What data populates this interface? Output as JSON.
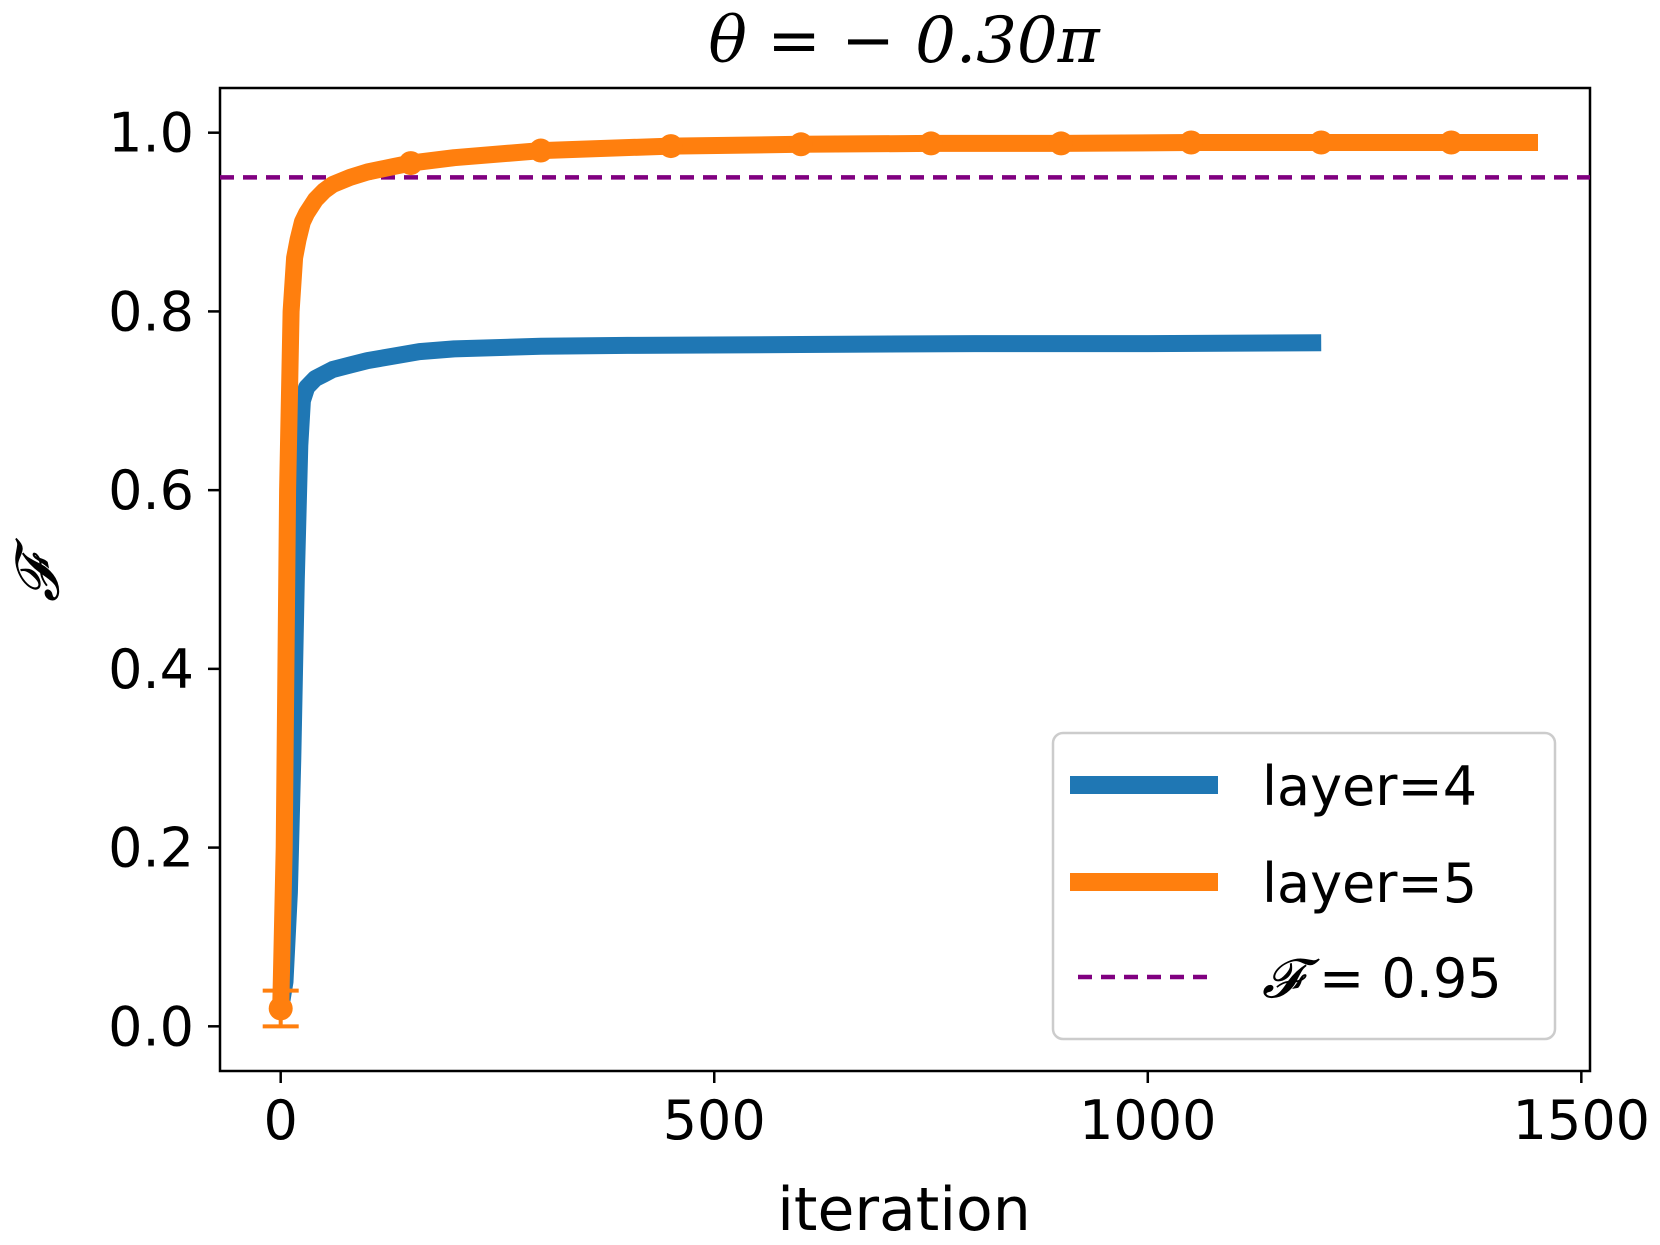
{
  "chart_data": {
    "type": "line",
    "title": "θ = − 0.30π",
    "xlabel": "iteration",
    "ylabel": "𝓕",
    "xlim": [
      -70,
      1510
    ],
    "ylim": [
      -0.05,
      1.05
    ],
    "xticks": [
      0,
      500,
      1000,
      1500
    ],
    "xtick_labels": [
      "0",
      "500",
      "1000",
      "1500"
    ],
    "yticks": [
      0.0,
      0.2,
      0.4,
      0.6,
      0.8,
      1.0
    ],
    "ytick_labels": [
      "0.0",
      "0.2",
      "0.4",
      "0.6",
      "0.8",
      "1.0"
    ],
    "grid": false,
    "legend_position": "lower-right",
    "series": [
      {
        "name": "layer=4",
        "color": "#1f77b4",
        "style": "solid",
        "x": [
          0,
          5,
          10,
          14,
          18,
          22,
          25,
          30,
          40,
          50,
          60,
          80,
          100,
          130,
          160,
          200,
          300,
          400,
          600,
          800,
          1000,
          1200
        ],
        "y": [
          0.02,
          0.05,
          0.15,
          0.3,
          0.5,
          0.65,
          0.7,
          0.715,
          0.725,
          0.73,
          0.735,
          0.74,
          0.745,
          0.75,
          0.755,
          0.758,
          0.761,
          0.762,
          0.763,
          0.764,
          0.764,
          0.765
        ]
      },
      {
        "name": "layer=5",
        "color": "#ff7f0e",
        "style": "solid",
        "x": [
          0,
          4,
          8,
          12,
          16,
          20,
          25,
          30,
          40,
          50,
          60,
          80,
          100,
          130,
          150,
          200,
          300,
          450,
          600,
          750,
          900,
          1050,
          1200,
          1350,
          1450
        ],
        "y": [
          0.02,
          0.2,
          0.6,
          0.8,
          0.86,
          0.88,
          0.9,
          0.91,
          0.925,
          0.935,
          0.942,
          0.95,
          0.956,
          0.962,
          0.966,
          0.972,
          0.98,
          0.985,
          0.987,
          0.988,
          0.988,
          0.989,
          0.989,
          0.989,
          0.989
        ],
        "markers_x": [
          0,
          150,
          300,
          450,
          600,
          750,
          900,
          1050,
          1200,
          1350
        ],
        "error_bar": {
          "x": 0,
          "y": 0.02,
          "low": 0.0,
          "high": 0.04
        }
      },
      {
        "name": "𝓕 = 0.95",
        "color": "#800080",
        "style": "dashed",
        "y": 0.95
      }
    ]
  },
  "legend": {
    "items": [
      {
        "label": "layer=4",
        "color": "#1f77b4",
        "style": "solid"
      },
      {
        "label": "layer=5",
        "color": "#ff7f0e",
        "style": "solid"
      },
      {
        "label_math": "𝓕",
        "label_rest": " = 0.95",
        "color": "#800080",
        "style": "dashed"
      }
    ]
  }
}
